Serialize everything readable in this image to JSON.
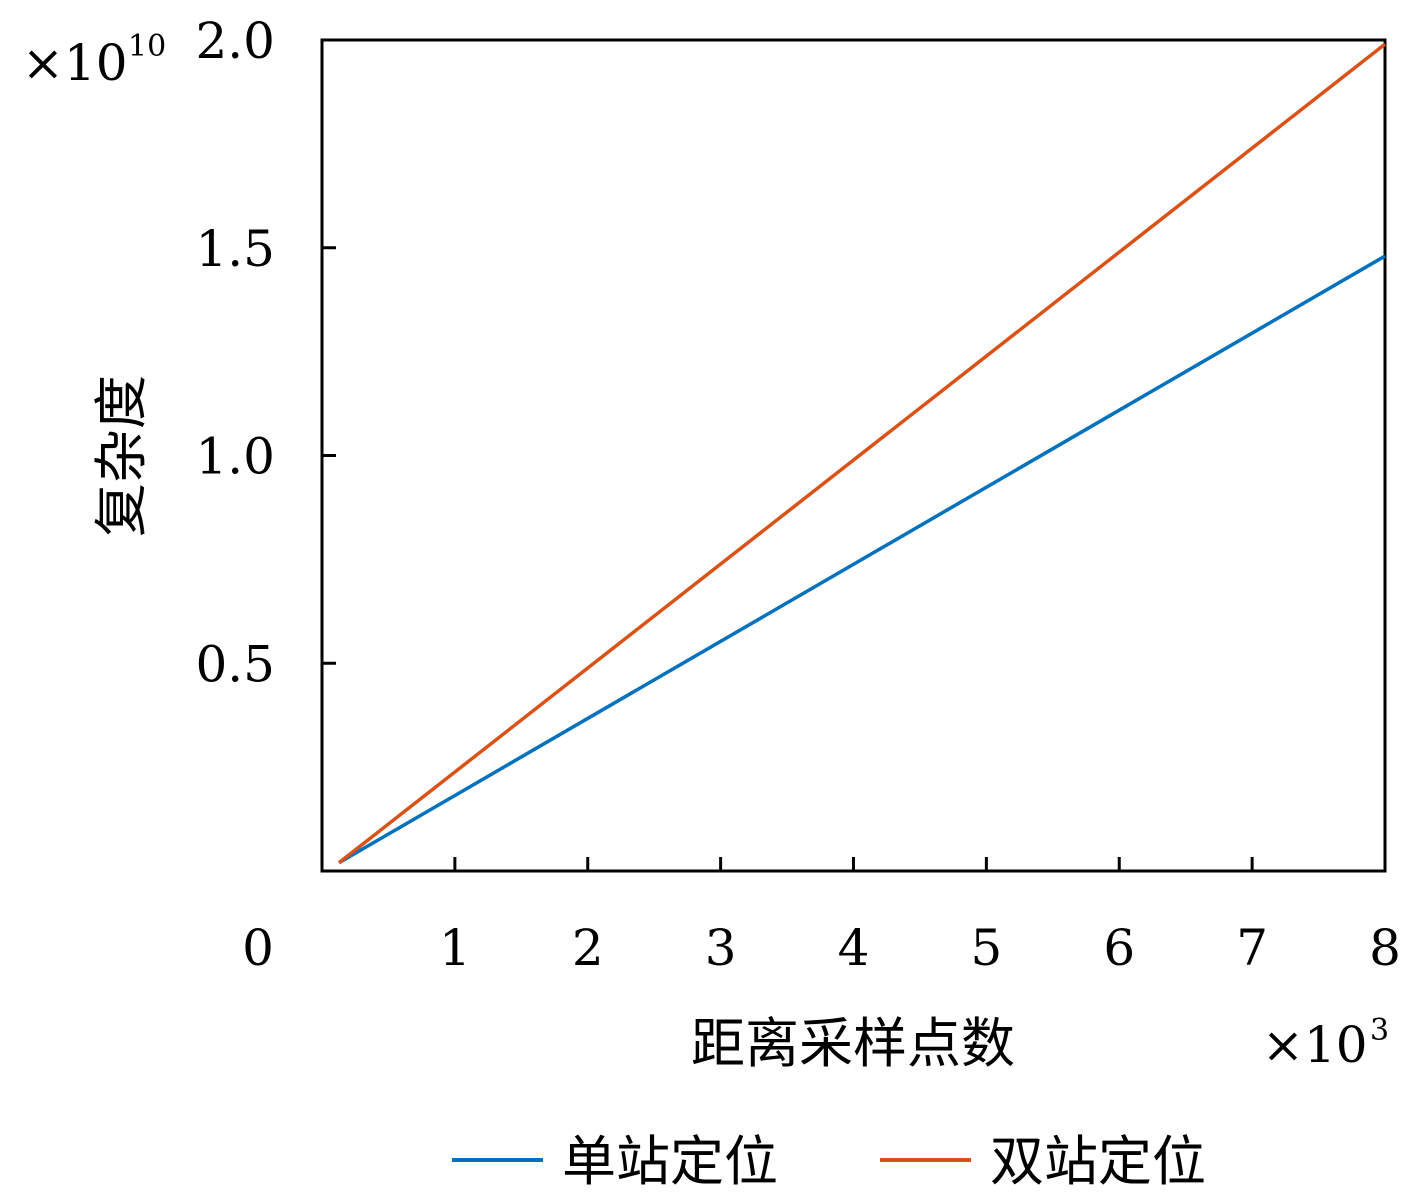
{
  "chart_data": {
    "type": "line",
    "xlabel": "距离采样点数",
    "ylabel": "复杂度",
    "x_multiplier": {
      "base": "×10",
      "exponent": "3"
    },
    "y_multiplier": {
      "base": "×10",
      "exponent": "10"
    },
    "xlim": [
      0,
      8
    ],
    "ylim": [
      0,
      2.0
    ],
    "x_ticks": [
      1,
      2,
      3,
      4,
      5,
      6,
      7,
      8
    ],
    "x_tick_labels": [
      "1",
      "2",
      "3",
      "4",
      "5",
      "6",
      "7",
      "8"
    ],
    "x_origin_label": "0",
    "y_ticks": [
      0.5,
      1.0,
      1.5,
      2.0
    ],
    "y_tick_labels": [
      "0.5",
      "1.0",
      "1.5",
      "2.0"
    ],
    "grid": false,
    "legend_position": "bottom",
    "series": [
      {
        "name": "单站定位",
        "color": "#0072BD",
        "x": [
          0.128,
          8
        ],
        "y": [
          0.02,
          1.48
        ]
      },
      {
        "name": "双站定位",
        "color": "#D95319",
        "x": [
          0.128,
          8
        ],
        "y": [
          0.02,
          1.99
        ]
      }
    ]
  }
}
